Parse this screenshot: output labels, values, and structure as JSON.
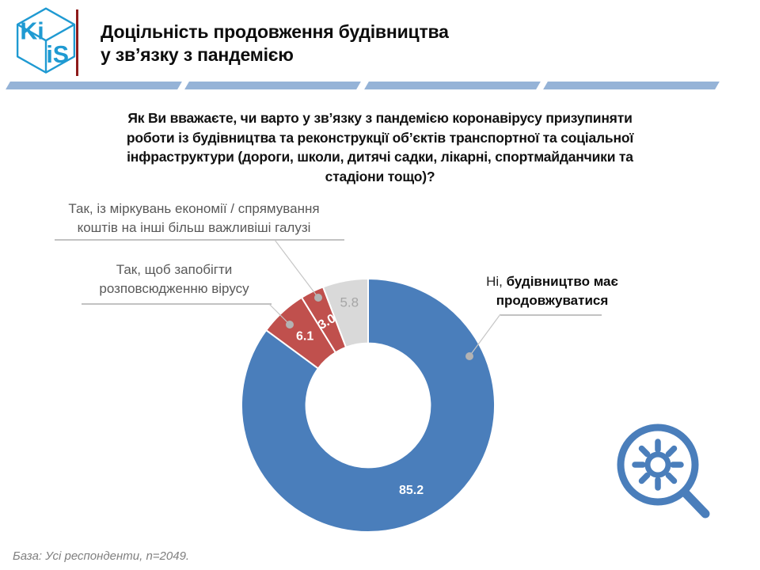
{
  "header": {
    "logo": {
      "left_text": "Ki",
      "right_text": "iS",
      "color": "#1f9ad2"
    },
    "title_lines": [
      "Доцільність продовження будівництва",
      "у зв’язку з пандемією"
    ],
    "divider_color": "#8e1b1b",
    "bar_color": "#95b3d7"
  },
  "question": {
    "lines": [
      "Як Ви вважаєте, чи варто у зв’язку з пандемією коронавірусу призупиняти",
      "роботи із будівництва та реконструкції об’єктів транспортної та соціальної",
      "інфраструктури (дороги, школи, дитячі садки, лікарні, спортмайданчики та",
      "стадіони тощо)?"
    ]
  },
  "callouts": {
    "economy": {
      "line1": "Так, із міркувань економії / спрямування",
      "line2": "коштів на інші більш важливіші галузі"
    },
    "virus": {
      "line1": "Так, щоб запобігти",
      "line2": "розповсюдженню вірусу"
    },
    "no": {
      "prefix": "Ні, ",
      "bold_line1": "будівництво має",
      "bold_line2": "продовжуватися"
    }
  },
  "chart_data": {
    "type": "pie",
    "subtype": "donut",
    "title": "Доцільність продовження будівництва у зв’язку з пандемією",
    "start_angle_deg": 0,
    "direction": "clockwise",
    "donut_hole_ratio": 0.49,
    "legend_position": "none",
    "slices": [
      {
        "label": "Ні, будівництво має продовжуватися",
        "value": 85.2,
        "color": "#4a7ebb",
        "value_color": "#ffffff",
        "bold": true,
        "label_radius": 121
      },
      {
        "label": "Так, щоб запобігти розповсюдженню вірусу",
        "value": 6.1,
        "color": "#c0504d",
        "value_color": "#ffffff",
        "bold": true,
        "label_radius": 118
      },
      {
        "label": "Так, із міркувань економії / спрямування коштів на інші більш важливіші галузі",
        "value": 3.0,
        "color": "#c0504d",
        "value_color": "#ffffff",
        "bold": true,
        "label_radius": 117,
        "rotate": -30
      },
      {
        "label": "",
        "value": 5.8,
        "color": "#d9d9d9",
        "value_color": "#a6a6a6",
        "bold": false,
        "label_radius": 131
      }
    ]
  },
  "footer": {
    "base_note": "База: Усі респонденти, n=2049."
  }
}
